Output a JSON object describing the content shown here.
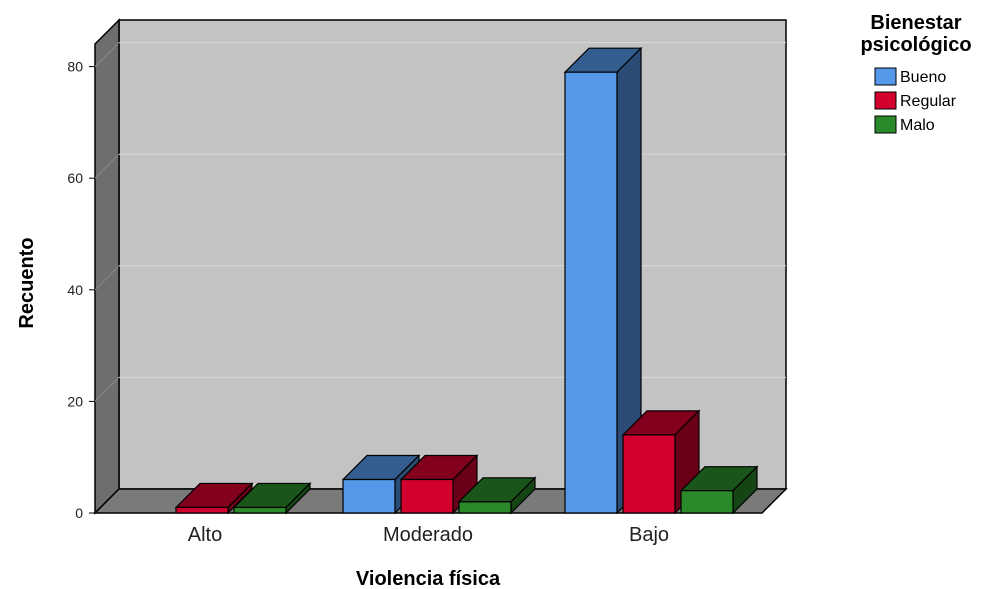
{
  "chart_data": {
    "type": "bar",
    "three_d": true,
    "categories": [
      "Alto",
      "Moderado",
      "Bajo"
    ],
    "series": [
      {
        "name": "Bueno",
        "values": [
          0,
          6,
          79
        ],
        "color": "#5597e8"
      },
      {
        "name": "Regular",
        "values": [
          1,
          6,
          14
        ],
        "color": "#d2002d"
      },
      {
        "name": "Malo",
        "values": [
          1,
          2,
          4
        ],
        "color": "#2a8a2a"
      }
    ],
    "xlabel": "Violencia física",
    "ylabel": "Recuento",
    "ylim": [
      0,
      85
    ],
    "yticks": [
      "0",
      "20",
      "40",
      "60",
      "80"
    ],
    "legend_title": [
      "Bienestar",
      "psicológico"
    ],
    "legend_placement": "top-right",
    "grid": true,
    "colors": {
      "plot_back": "#c3c3c3",
      "plot_side": "#6e6e6e",
      "plot_floor": "#7a7a7a",
      "gridline": "#d9d9d9"
    }
  }
}
